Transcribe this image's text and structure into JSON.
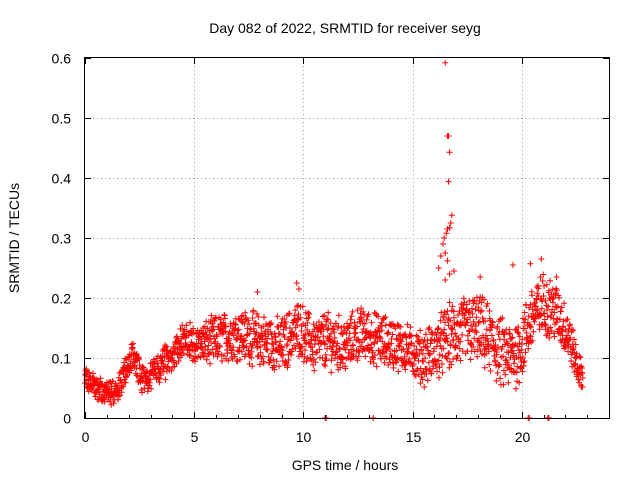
{
  "chart_data": {
    "type": "scatter",
    "title": "Day 082 of 2022, SRMTID for receiver seyg",
    "xlabel": "GPS time / hours",
    "ylabel": "SRMTID / TECUs",
    "xlim": [
      0,
      24
    ],
    "ylim": [
      0,
      0.6
    ],
    "x_ticks": [
      0,
      5,
      10,
      15,
      20
    ],
    "x_tick_labels": [
      "0",
      "5",
      "10",
      "15",
      "20"
    ],
    "y_ticks": [
      0,
      0.1,
      0.2,
      0.3,
      0.4,
      0.5,
      0.6
    ],
    "y_tick_labels": [
      "0",
      "0.1",
      "0.2",
      "0.3",
      "0.4",
      "0.5",
      "0.6"
    ],
    "grid": true,
    "marker": "+",
    "series": [
      {
        "name": "SRMTID",
        "color": "#ff0000",
        "profile": [
          {
            "x": 0.0,
            "y": 0.07
          },
          {
            "x": 0.25,
            "y": 0.06
          },
          {
            "x": 0.5,
            "y": 0.05
          },
          {
            "x": 1.0,
            "y": 0.04
          },
          {
            "x": 1.5,
            "y": 0.045
          },
          {
            "x": 2.0,
            "y": 0.09
          },
          {
            "x": 2.2,
            "y": 0.11
          },
          {
            "x": 2.6,
            "y": 0.06
          },
          {
            "x": 3.0,
            "y": 0.07
          },
          {
            "x": 3.5,
            "y": 0.09
          },
          {
            "x": 4.0,
            "y": 0.1
          },
          {
            "x": 4.5,
            "y": 0.13
          },
          {
            "x": 5.0,
            "y": 0.12
          },
          {
            "x": 6.0,
            "y": 0.13
          },
          {
            "x": 7.0,
            "y": 0.14
          },
          {
            "x": 8.0,
            "y": 0.13
          },
          {
            "x": 9.0,
            "y": 0.12
          },
          {
            "x": 9.8,
            "y": 0.15
          },
          {
            "x": 10.5,
            "y": 0.12
          },
          {
            "x": 11.0,
            "y": 0.13
          },
          {
            "x": 12.0,
            "y": 0.12
          },
          {
            "x": 12.5,
            "y": 0.14
          },
          {
            "x": 13.5,
            "y": 0.13
          },
          {
            "x": 14.5,
            "y": 0.12
          },
          {
            "x": 15.5,
            "y": 0.1
          },
          {
            "x": 16.0,
            "y": 0.11
          },
          {
            "x": 16.5,
            "y": 0.13
          },
          {
            "x": 17.0,
            "y": 0.14
          },
          {
            "x": 18.0,
            "y": 0.15
          },
          {
            "x": 18.5,
            "y": 0.13
          },
          {
            "x": 19.0,
            "y": 0.11
          },
          {
            "x": 19.5,
            "y": 0.1
          },
          {
            "x": 20.0,
            "y": 0.12
          },
          {
            "x": 20.5,
            "y": 0.17
          },
          {
            "x": 21.0,
            "y": 0.19
          },
          {
            "x": 21.5,
            "y": 0.18
          },
          {
            "x": 22.0,
            "y": 0.15
          },
          {
            "x": 22.3,
            "y": 0.12
          },
          {
            "x": 22.6,
            "y": 0.08
          },
          {
            "x": 22.8,
            "y": 0.07
          }
        ],
        "spread": [
          {
            "x": 0.0,
            "s": 0.015
          },
          {
            "x": 2.0,
            "s": 0.02
          },
          {
            "x": 4.0,
            "s": 0.025
          },
          {
            "x": 6.0,
            "s": 0.035
          },
          {
            "x": 9.0,
            "s": 0.04
          },
          {
            "x": 12.0,
            "s": 0.04
          },
          {
            "x": 15.0,
            "s": 0.035
          },
          {
            "x": 17.0,
            "s": 0.05
          },
          {
            "x": 20.0,
            "s": 0.05
          },
          {
            "x": 22.0,
            "s": 0.04
          },
          {
            "x": 22.8,
            "s": 0.02
          }
        ],
        "outliers": [
          {
            "x": 16.5,
            "y": 0.592
          },
          {
            "x": 16.6,
            "y": 0.47
          },
          {
            "x": 16.65,
            "y": 0.47
          },
          {
            "x": 16.7,
            "y": 0.443
          },
          {
            "x": 16.65,
            "y": 0.394
          },
          {
            "x": 16.8,
            "y": 0.338
          },
          {
            "x": 16.75,
            "y": 0.325
          },
          {
            "x": 16.7,
            "y": 0.317
          },
          {
            "x": 16.6,
            "y": 0.315
          },
          {
            "x": 16.55,
            "y": 0.308
          },
          {
            "x": 16.45,
            "y": 0.3
          },
          {
            "x": 16.4,
            "y": 0.29
          },
          {
            "x": 16.5,
            "y": 0.275
          },
          {
            "x": 16.3,
            "y": 0.27
          },
          {
            "x": 16.6,
            "y": 0.262
          },
          {
            "x": 16.2,
            "y": 0.25
          },
          {
            "x": 16.9,
            "y": 0.245
          },
          {
            "x": 16.7,
            "y": 0.24
          },
          {
            "x": 16.5,
            "y": 0.23
          },
          {
            "x": 9.7,
            "y": 0.225
          },
          {
            "x": 9.8,
            "y": 0.215
          },
          {
            "x": 20.4,
            "y": 0.257
          },
          {
            "x": 20.9,
            "y": 0.265
          },
          {
            "x": 21.6,
            "y": 0.235
          },
          {
            "x": 19.6,
            "y": 0.255
          },
          {
            "x": 18.1,
            "y": 0.235
          },
          {
            "x": 7.9,
            "y": 0.21
          },
          {
            "x": 11.0,
            "y": 0.0
          },
          {
            "x": 11.05,
            "y": 0.0
          },
          {
            "x": 13.2,
            "y": 0.0
          },
          {
            "x": 20.3,
            "y": 0.0
          },
          {
            "x": 20.35,
            "y": 0.0
          },
          {
            "x": 21.2,
            "y": 0.0
          },
          {
            "x": 21.25,
            "y": 0.0
          }
        ]
      }
    ]
  }
}
